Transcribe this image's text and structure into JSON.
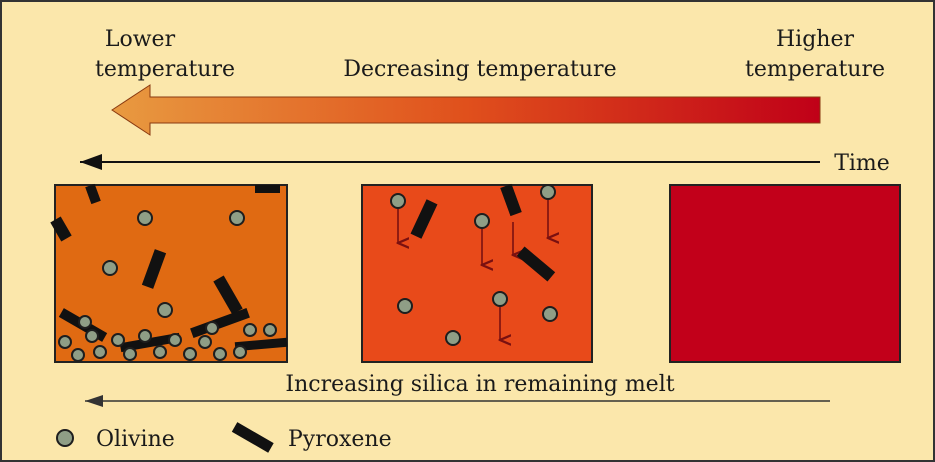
{
  "header": {
    "lower": [
      "Lower",
      "temperature"
    ],
    "middle": "Decreasing temperature",
    "higher": [
      "Higher",
      "temperature"
    ]
  },
  "time": "Time",
  "silica": "Increasing silica in remaining melt",
  "legend": {
    "olivine": "Olivine",
    "pyroxene": "Pyroxene"
  }
}
